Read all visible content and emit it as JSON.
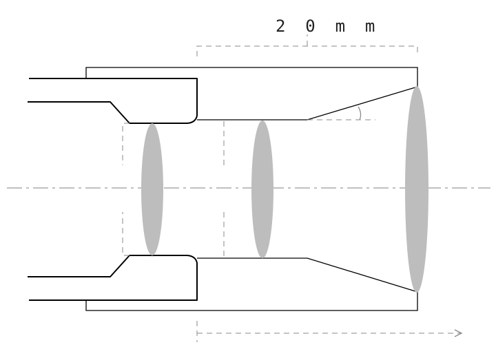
{
  "diagram": {
    "dimension_label": "2 0   m m",
    "colors": {
      "outline": "#000000",
      "lens_fill": "#bdbdbd",
      "construction_line": "#8a8a8a"
    }
  }
}
